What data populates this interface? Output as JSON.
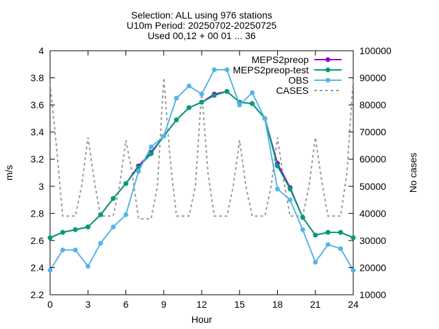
{
  "chart_data": {
    "type": "line",
    "title_lines": [
      "Selection: ALL using   976 stations",
      "U10m   Period: 20250702-20250725",
      "Used 00,12 + 00 01 ... 36"
    ],
    "xlabel": "Hour",
    "ylabel": "m/s",
    "y2label": "No cases",
    "xlim": [
      0,
      24
    ],
    "ylim": [
      2.2,
      4.0
    ],
    "y2lim": [
      10000,
      100000
    ],
    "xticks": [
      "0",
      "3",
      "6",
      "9",
      "12",
      "15",
      "18",
      "21",
      "24"
    ],
    "yticks": [
      "2.2",
      "2.4",
      "2.6",
      "2.8",
      "3",
      "3.2",
      "3.4",
      "3.6",
      "3.8",
      "4"
    ],
    "y2ticks": [
      "10000",
      "20000",
      "30000",
      "40000",
      "50000",
      "60000",
      "70000",
      "80000",
      "90000",
      "100000"
    ],
    "grid": false,
    "legend_position": "top-right",
    "x": [
      0,
      1,
      2,
      3,
      4,
      5,
      6,
      7,
      8,
      9,
      10,
      11,
      12,
      13,
      14,
      15,
      16,
      17,
      18,
      19,
      20,
      21,
      22,
      23,
      24
    ],
    "series": [
      {
        "name": "MEPS2preop",
        "color": "#9400d3",
        "marker": "filled-circle",
        "axis": "y",
        "values": [
          2.62,
          2.66,
          2.68,
          2.7,
          2.79,
          2.91,
          3.02,
          3.15,
          3.25,
          3.37,
          3.49,
          3.58,
          3.62,
          3.68,
          3.7,
          3.62,
          3.61,
          3.5,
          3.17,
          2.99,
          2.77,
          2.64,
          2.66,
          2.66,
          2.62
        ]
      },
      {
        "name": "MEPS2preop-test",
        "color": "#009e73",
        "marker": "filled-circle",
        "axis": "y",
        "values": [
          2.62,
          2.66,
          2.68,
          2.7,
          2.79,
          2.91,
          3.02,
          3.14,
          3.24,
          3.37,
          3.49,
          3.58,
          3.62,
          3.67,
          3.7,
          3.62,
          3.61,
          3.5,
          3.15,
          2.98,
          2.77,
          2.64,
          2.66,
          2.66,
          2.62
        ]
      },
      {
        "name": "OBS",
        "color": "#56b4e9",
        "marker": "filled-circle",
        "axis": "y",
        "values": [
          2.38,
          2.53,
          2.53,
          2.41,
          2.58,
          2.7,
          2.79,
          3.11,
          3.29,
          3.37,
          3.65,
          3.74,
          3.68,
          3.86,
          3.86,
          3.6,
          3.69,
          3.5,
          2.98,
          2.9,
          2.68,
          2.44,
          2.57,
          2.54,
          2.38
        ]
      },
      {
        "name": "CASES",
        "color": "#9a9a9a",
        "marker": "none",
        "dashed": true,
        "axis": "y2",
        "x": [
          0,
          0.5,
          1,
          2,
          2.5,
          3,
          3.5,
          4,
          5,
          5.5,
          6,
          6.5,
          7,
          8,
          8.5,
          9,
          9.5,
          10,
          11,
          11.5,
          12,
          12.5,
          13,
          14,
          14.5,
          15,
          15.5,
          16,
          17,
          17.5,
          18,
          18.5,
          19,
          20,
          20.5,
          21,
          21.5,
          22,
          23,
          23.5,
          24
        ],
        "values": [
          88000,
          65000,
          39000,
          39000,
          50000,
          68000,
          52000,
          39000,
          39000,
          50000,
          67000,
          55000,
          38000,
          38000,
          50000,
          90000,
          60000,
          39000,
          39000,
          50000,
          85000,
          55000,
          39000,
          39000,
          50000,
          67000,
          50000,
          39000,
          39000,
          50000,
          68000,
          52000,
          39000,
          39000,
          50000,
          68000,
          52000,
          39000,
          39000,
          55000,
          90000
        ]
      }
    ]
  }
}
